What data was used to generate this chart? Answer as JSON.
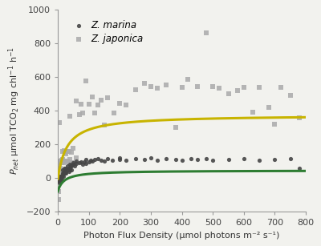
{
  "xlabel": "Photon Flux Density (μmol photons m⁻² s⁻¹)",
  "xlim": [
    0,
    800
  ],
  "ylim": [
    -200,
    1000
  ],
  "yticks": [
    -200,
    0,
    200,
    400,
    600,
    800,
    1000
  ],
  "xticks": [
    0,
    100,
    200,
    300,
    400,
    500,
    600,
    700,
    800
  ],
  "marina_x": [
    1,
    2,
    3,
    4,
    5,
    5,
    6,
    7,
    8,
    8,
    9,
    10,
    10,
    11,
    12,
    13,
    15,
    15,
    16,
    17,
    18,
    20,
    20,
    22,
    25,
    25,
    27,
    30,
    30,
    35,
    35,
    38,
    40,
    40,
    42,
    45,
    45,
    50,
    50,
    55,
    60,
    60,
    70,
    75,
    80,
    85,
    90,
    90,
    100,
    105,
    110,
    120,
    130,
    140,
    150,
    160,
    175,
    200,
    200,
    220,
    250,
    280,
    300,
    320,
    350,
    380,
    400,
    430,
    450,
    480,
    500,
    550,
    600,
    650,
    700,
    750,
    780
  ],
  "marina_y": [
    -20,
    -10,
    0,
    -30,
    -10,
    10,
    -20,
    0,
    10,
    -10,
    0,
    -20,
    10,
    0,
    -10,
    10,
    30,
    50,
    20,
    10,
    30,
    40,
    60,
    30,
    40,
    60,
    30,
    50,
    70,
    60,
    40,
    50,
    80,
    60,
    70,
    70,
    50,
    80,
    90,
    70,
    85,
    100,
    90,
    95,
    80,
    95,
    110,
    85,
    95,
    105,
    100,
    110,
    115,
    105,
    100,
    115,
    105,
    110,
    120,
    105,
    115,
    110,
    120,
    105,
    115,
    110,
    105,
    115,
    110,
    115,
    105,
    110,
    115,
    105,
    110,
    115,
    60
  ],
  "japonica_x": [
    1,
    2,
    3,
    4,
    5,
    6,
    6,
    7,
    8,
    9,
    10,
    10,
    11,
    12,
    13,
    14,
    15,
    15,
    15,
    18,
    20,
    20,
    22,
    25,
    25,
    28,
    30,
    30,
    35,
    40,
    40,
    45,
    45,
    50,
    55,
    60,
    60,
    70,
    75,
    80,
    90,
    100,
    110,
    120,
    130,
    140,
    150,
    160,
    180,
    200,
    220,
    250,
    280,
    300,
    320,
    350,
    380,
    400,
    420,
    450,
    480,
    500,
    520,
    550,
    580,
    600,
    630,
    650,
    680,
    700,
    720,
    750,
    780
  ],
  "japonica_y": [
    -210,
    -130,
    -80,
    30,
    50,
    330,
    80,
    60,
    100,
    90,
    100,
    95,
    90,
    105,
    95,
    90,
    110,
    100,
    160,
    90,
    100,
    165,
    155,
    160,
    145,
    95,
    160,
    100,
    160,
    110,
    370,
    90,
    155,
    175,
    90,
    120,
    460,
    375,
    440,
    385,
    575,
    440,
    480,
    385,
    435,
    465,
    315,
    475,
    385,
    445,
    435,
    525,
    565,
    545,
    535,
    555,
    300,
    540,
    585,
    545,
    865,
    545,
    535,
    500,
    520,
    540,
    390,
    540,
    420,
    320,
    540,
    490,
    360
  ],
  "marina_curve": {
    "Pmax": 125,
    "Ik": 20,
    "Rd": 80
  },
  "japonica_curve": {
    "Pmax": 380,
    "Ik": 30,
    "Rd": 5
  },
  "marina_color": "#2e7d32",
  "japonica_color": "#c8b400",
  "marina_scatter_color": "#454545",
  "japonica_scatter_color": "#aaaaaa",
  "background_color": "#f2f2ee",
  "legend_marina": "Z. marina",
  "legend_japonica": "Z. japonica",
  "fontsize_legend": 8.5,
  "fontsize_axis": 8,
  "fontsize_label": 8
}
